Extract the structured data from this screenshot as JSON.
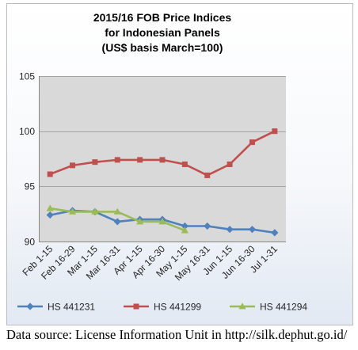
{
  "chart_data": {
    "type": "line",
    "title_lines": [
      "2015/16 FOB Price Indices",
      "for Indonesian Panels",
      "(US$ basis March=100)"
    ],
    "categories": [
      "Feb 1-15",
      "Feb 16-29",
      "Mar 1-15",
      "Mar 16-31",
      "Apr 1-15",
      "Apr 16-30",
      "May 1-15",
      "May 16-31",
      "Jun 1-15",
      "Jun 16-30",
      "Jul 1-31"
    ],
    "ylim": [
      90,
      105
    ],
    "yticks": [
      90,
      95,
      100,
      105
    ],
    "grid": true,
    "legend": "bottom",
    "plot_background": "#d9d9d9",
    "series": [
      {
        "name": "HS 441231",
        "color": "#4f81bd",
        "marker": "diamond",
        "values": [
          92.4,
          92.8,
          92.7,
          91.8,
          92.0,
          92.0,
          91.4,
          91.4,
          91.1,
          91.1,
          90.8
        ]
      },
      {
        "name": "HS 441299",
        "color": "#c0504d",
        "marker": "square",
        "values": [
          96.1,
          96.9,
          97.2,
          97.4,
          97.4,
          97.4,
          97.0,
          96.0,
          97.0,
          99.0,
          100.0
        ]
      },
      {
        "name": "HS 441294",
        "color": "#9bbb59",
        "marker": "triangle",
        "values": [
          93.0,
          92.7,
          92.7,
          92.7,
          91.8,
          91.8,
          91.0,
          null,
          null,
          null,
          null
        ]
      }
    ]
  },
  "source": "Data source: License Information Unit in http://silk.dephut.go.id/"
}
